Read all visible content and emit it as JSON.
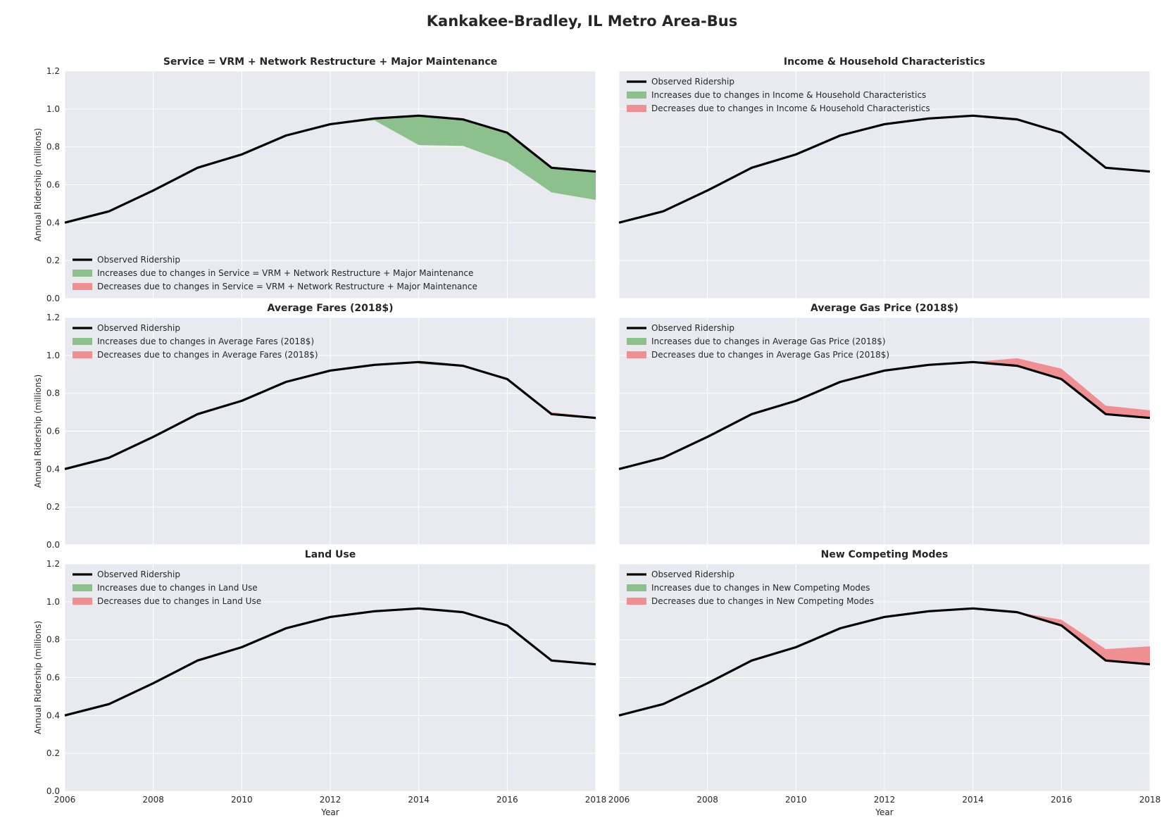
{
  "figure_title": "Kankakee-Bradley, IL Metro Area-Bus",
  "colors": {
    "panel_bg": "#e9e9f0",
    "grid": "#ffffff",
    "observed_line": "#000000",
    "increase_fill": "#8cc08c",
    "decrease_fill": "#f08f92",
    "text": "#262626"
  },
  "legend_labels": {
    "observed": "Observed Ridership",
    "increase_prefix": "Increases due to changes in ",
    "decrease_prefix": "Decreases due to changes in "
  },
  "chart_data": [
    {
      "type": "area",
      "title": "Service = VRM + Network Restructure + Major Maintenance",
      "xlabel": "",
      "ylabel": "Annual Ridership (millions)",
      "xlim": [
        2006,
        2018
      ],
      "ylim": [
        0.0,
        1.2
      ],
      "xticks": [
        2006,
        2008,
        2010,
        2012,
        2014,
        2016,
        2018
      ],
      "yticks": [
        0.0,
        0.2,
        0.4,
        0.6,
        0.8,
        1.0,
        1.2
      ],
      "show_xticks": false,
      "show_yticks": true,
      "grid": true,
      "legend_position": "lower-left",
      "x": [
        2006,
        2007,
        2008,
        2009,
        2010,
        2011,
        2012,
        2013,
        2014,
        2015,
        2016,
        2017,
        2018
      ],
      "observed": [
        0.4,
        0.46,
        0.57,
        0.69,
        0.76,
        0.86,
        0.92,
        0.95,
        0.965,
        0.945,
        0.875,
        0.69,
        0.67
      ],
      "increase_lower": [
        null,
        null,
        null,
        null,
        null,
        null,
        0.92,
        0.94,
        0.81,
        0.805,
        0.72,
        0.56,
        0.52
      ],
      "decrease_upper": [
        null,
        null,
        null,
        null,
        null,
        null,
        null,
        null,
        null,
        null,
        null,
        null,
        null
      ]
    },
    {
      "type": "area",
      "title": "Income & Household Characteristics",
      "xlabel": "",
      "ylabel": "",
      "xlim": [
        2006,
        2018
      ],
      "ylim": [
        0.0,
        1.2
      ],
      "xticks": [
        2006,
        2008,
        2010,
        2012,
        2014,
        2016,
        2018
      ],
      "yticks": [
        0.0,
        0.2,
        0.4,
        0.6,
        0.8,
        1.0,
        1.2
      ],
      "show_xticks": false,
      "show_yticks": false,
      "grid": true,
      "legend_position": "upper-left",
      "x": [
        2006,
        2007,
        2008,
        2009,
        2010,
        2011,
        2012,
        2013,
        2014,
        2015,
        2016,
        2017,
        2018
      ],
      "observed": [
        0.4,
        0.46,
        0.57,
        0.69,
        0.76,
        0.86,
        0.92,
        0.95,
        0.965,
        0.945,
        0.875,
        0.69,
        0.67
      ],
      "increase_lower": [
        null,
        null,
        null,
        null,
        null,
        null,
        null,
        null,
        null,
        null,
        null,
        null,
        null
      ],
      "decrease_upper": [
        null,
        null,
        null,
        null,
        null,
        null,
        null,
        null,
        null,
        null,
        null,
        null,
        null
      ]
    },
    {
      "type": "area",
      "title": "Average Fares (2018$)",
      "xlabel": "",
      "ylabel": "Annual Ridership (millions)",
      "xlim": [
        2006,
        2018
      ],
      "ylim": [
        0.0,
        1.2
      ],
      "xticks": [
        2006,
        2008,
        2010,
        2012,
        2014,
        2016,
        2018
      ],
      "yticks": [
        0.0,
        0.2,
        0.4,
        0.6,
        0.8,
        1.0,
        1.2
      ],
      "show_xticks": false,
      "show_yticks": true,
      "grid": true,
      "legend_position": "upper-left",
      "x": [
        2006,
        2007,
        2008,
        2009,
        2010,
        2011,
        2012,
        2013,
        2014,
        2015,
        2016,
        2017,
        2018
      ],
      "observed": [
        0.4,
        0.46,
        0.57,
        0.69,
        0.76,
        0.86,
        0.92,
        0.95,
        0.965,
        0.945,
        0.875,
        0.69,
        0.67
      ],
      "increase_lower": [
        null,
        null,
        null,
        null,
        null,
        null,
        null,
        null,
        0.955,
        0.94,
        null,
        null,
        null
      ],
      "decrease_upper": [
        null,
        null,
        null,
        null,
        null,
        null,
        null,
        null,
        null,
        null,
        0.875,
        0.7,
        0.675
      ]
    },
    {
      "type": "area",
      "title": "Average Gas Price (2018$)",
      "xlabel": "",
      "ylabel": "",
      "xlim": [
        2006,
        2018
      ],
      "ylim": [
        0.0,
        1.2
      ],
      "xticks": [
        2006,
        2008,
        2010,
        2012,
        2014,
        2016,
        2018
      ],
      "yticks": [
        0.0,
        0.2,
        0.4,
        0.6,
        0.8,
        1.0,
        1.2
      ],
      "show_xticks": false,
      "show_yticks": false,
      "grid": true,
      "legend_position": "upper-left",
      "x": [
        2006,
        2007,
        2008,
        2009,
        2010,
        2011,
        2012,
        2013,
        2014,
        2015,
        2016,
        2017,
        2018
      ],
      "observed": [
        0.4,
        0.46,
        0.57,
        0.69,
        0.76,
        0.86,
        0.92,
        0.95,
        0.965,
        0.945,
        0.875,
        0.69,
        0.67
      ],
      "increase_lower": [
        null,
        null,
        null,
        null,
        null,
        null,
        null,
        null,
        null,
        null,
        null,
        null,
        null
      ],
      "decrease_upper": [
        null,
        null,
        null,
        null,
        null,
        null,
        null,
        null,
        0.965,
        0.985,
        0.93,
        0.735,
        0.71
      ]
    },
    {
      "type": "area",
      "title": "Land Use",
      "xlabel": "Year",
      "ylabel": "Annual Ridership (millions)",
      "xlim": [
        2006,
        2018
      ],
      "ylim": [
        0.0,
        1.2
      ],
      "xticks": [
        2006,
        2008,
        2010,
        2012,
        2014,
        2016,
        2018
      ],
      "yticks": [
        0.0,
        0.2,
        0.4,
        0.6,
        0.8,
        1.0,
        1.2
      ],
      "show_xticks": true,
      "show_yticks": true,
      "grid": true,
      "legend_position": "upper-left",
      "x": [
        2006,
        2007,
        2008,
        2009,
        2010,
        2011,
        2012,
        2013,
        2014,
        2015,
        2016,
        2017,
        2018
      ],
      "observed": [
        0.4,
        0.46,
        0.57,
        0.69,
        0.76,
        0.86,
        0.92,
        0.95,
        0.965,
        0.945,
        0.875,
        0.69,
        0.67
      ],
      "increase_lower": [
        null,
        null,
        null,
        null,
        null,
        null,
        null,
        null,
        null,
        null,
        null,
        null,
        null
      ],
      "decrease_upper": [
        null,
        null,
        null,
        null,
        null,
        null,
        null,
        null,
        null,
        null,
        null,
        null,
        null
      ]
    },
    {
      "type": "area",
      "title": "New Competing Modes",
      "xlabel": "Year",
      "ylabel": "",
      "xlim": [
        2006,
        2018
      ],
      "ylim": [
        0.0,
        1.2
      ],
      "xticks": [
        2006,
        2008,
        2010,
        2012,
        2014,
        2016,
        2018
      ],
      "yticks": [
        0.0,
        0.2,
        0.4,
        0.6,
        0.8,
        1.0,
        1.2
      ],
      "show_xticks": true,
      "show_yticks": false,
      "grid": true,
      "legend_position": "upper-left",
      "x": [
        2006,
        2007,
        2008,
        2009,
        2010,
        2011,
        2012,
        2013,
        2014,
        2015,
        2016,
        2017,
        2018
      ],
      "observed": [
        0.4,
        0.46,
        0.57,
        0.69,
        0.76,
        0.86,
        0.92,
        0.95,
        0.965,
        0.945,
        0.875,
        0.69,
        0.67
      ],
      "increase_lower": [
        null,
        null,
        null,
        null,
        null,
        null,
        null,
        null,
        null,
        null,
        null,
        null,
        null
      ],
      "decrease_upper": [
        null,
        null,
        null,
        null,
        null,
        null,
        null,
        null,
        null,
        0.945,
        0.905,
        0.75,
        0.765
      ]
    }
  ]
}
